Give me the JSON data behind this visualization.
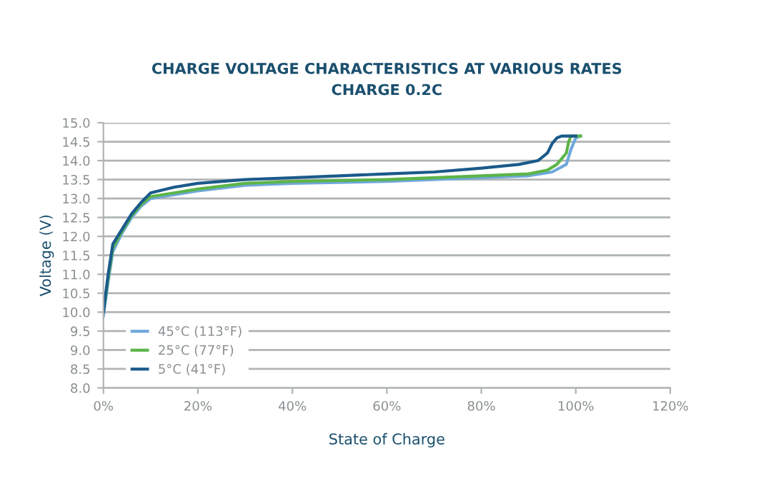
{
  "chart_data": {
    "type": "line",
    "title": "CHARGE VOLTAGE CHARACTERISTICS AT VARIOUS RATES\nCHARGE 0.2C",
    "xlabel": "State of Charge",
    "ylabel": "Voltage (V)",
    "xlim": [
      0,
      120
    ],
    "xticks": [
      {
        "value": 0,
        "label": "0%"
      },
      {
        "value": 20,
        "label": "20%"
      },
      {
        "value": 40,
        "label": "40%"
      },
      {
        "value": 60,
        "label": "60%"
      },
      {
        "value": 80,
        "label": "80%"
      },
      {
        "value": 100,
        "label": "100%"
      },
      {
        "value": 120,
        "label": "120%"
      }
    ],
    "ylim": [
      8.0,
      15.0
    ],
    "yticks": [
      {
        "value": 8.0,
        "label": "8.0"
      },
      {
        "value": 8.5,
        "label": "8.5"
      },
      {
        "value": 9.0,
        "label": "9.0"
      },
      {
        "value": 9.5,
        "label": "9.5"
      },
      {
        "value": 10.0,
        "label": "10.0"
      },
      {
        "value": 10.5,
        "label": "10.5"
      },
      {
        "value": 11.0,
        "label": "11.0"
      },
      {
        "value": 11.5,
        "label": "11.5"
      },
      {
        "value": 12.0,
        "label": "12.0"
      },
      {
        "value": 12.5,
        "label": "12.5"
      },
      {
        "value": 13.0,
        "label": "13.0"
      },
      {
        "value": 13.5,
        "label": "13.5"
      },
      {
        "value": 14.0,
        "label": "14.0"
      },
      {
        "value": 14.5,
        "label": "14.5"
      },
      {
        "value": 15.0,
        "label": "15.0"
      }
    ],
    "grid": "y",
    "legend": "bottom left",
    "marker": "none",
    "line_style": "solid",
    "series": [
      {
        "name": "45°C (113°F)",
        "color": "#6fa8dc",
        "x": [
          0,
          1,
          2,
          4,
          6,
          8,
          10,
          20,
          30,
          40,
          60,
          80,
          90,
          95,
          98,
          99,
          100,
          101
        ],
        "values": [
          9.9,
          10.8,
          11.6,
          12.1,
          12.5,
          12.8,
          13.0,
          13.2,
          13.35,
          13.4,
          13.45,
          13.55,
          13.6,
          13.7,
          13.9,
          14.3,
          14.6,
          14.65
        ]
      },
      {
        "name": "25°C (77°F)",
        "color": "#5cb548",
        "x": [
          0,
          1,
          2,
          4,
          6,
          8,
          10,
          20,
          30,
          40,
          60,
          80,
          90,
          94,
          96,
          98,
          98.5,
          99,
          101
        ],
        "values": [
          10.0,
          10.9,
          11.7,
          12.15,
          12.55,
          12.85,
          13.05,
          13.25,
          13.4,
          13.45,
          13.5,
          13.6,
          13.65,
          13.75,
          13.9,
          14.2,
          14.5,
          14.65,
          14.65
        ]
      },
      {
        "name": "5°C (41°F)",
        "color": "#1a5a8a",
        "x": [
          0,
          1,
          2,
          4,
          6,
          8,
          10,
          15,
          20,
          30,
          40,
          50,
          60,
          70,
          80,
          88,
          92,
          94,
          95,
          96,
          97,
          100
        ],
        "values": [
          10.0,
          11.0,
          11.8,
          12.2,
          12.6,
          12.9,
          13.15,
          13.3,
          13.4,
          13.5,
          13.55,
          13.6,
          13.65,
          13.7,
          13.8,
          13.9,
          14.0,
          14.2,
          14.45,
          14.6,
          14.65,
          14.65
        ]
      }
    ]
  }
}
